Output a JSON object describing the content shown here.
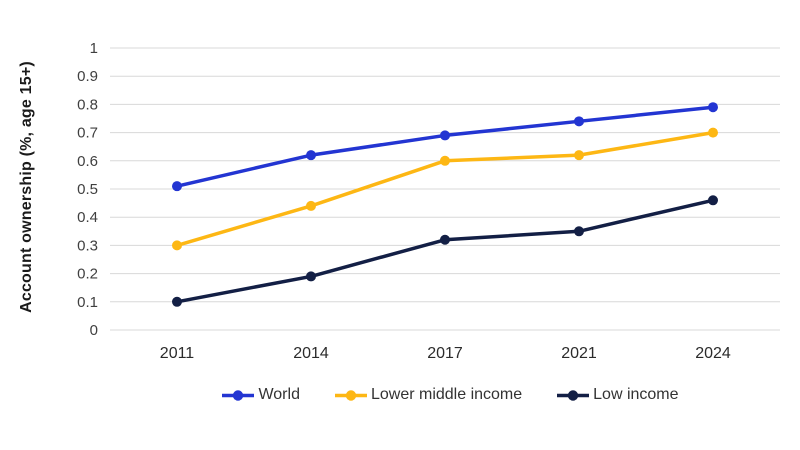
{
  "chart_data": {
    "type": "line",
    "title": "",
    "ylabel": "Account ownership (%, age 15+)",
    "xlabel": "",
    "categories": [
      "2011",
      "2014",
      "2017",
      "2021",
      "2024"
    ],
    "series": [
      {
        "name": "World",
        "color": "#2335d2",
        "values": [
          0.51,
          0.62,
          0.69,
          0.74,
          0.79
        ]
      },
      {
        "name": "Lower middle income",
        "color": "#fdb714",
        "values": [
          0.3,
          0.44,
          0.6,
          0.62,
          0.7
        ]
      },
      {
        "name": "Low income",
        "color": "#131f45",
        "values": [
          0.1,
          0.19,
          0.32,
          0.35,
          0.46
        ]
      }
    ],
    "ylim": [
      0,
      1
    ],
    "ytick_step": 0.1,
    "ytick_labels": [
      "0",
      "0.1",
      "0.2",
      "0.3",
      "0.4",
      "0.5",
      "0.6",
      "0.7",
      "0.8",
      "0.9",
      "1"
    ],
    "grid": true,
    "gridline_color": "#d8d8d8",
    "legend_position": "bottom",
    "marker": "circle",
    "background_color": "#ffffff"
  }
}
